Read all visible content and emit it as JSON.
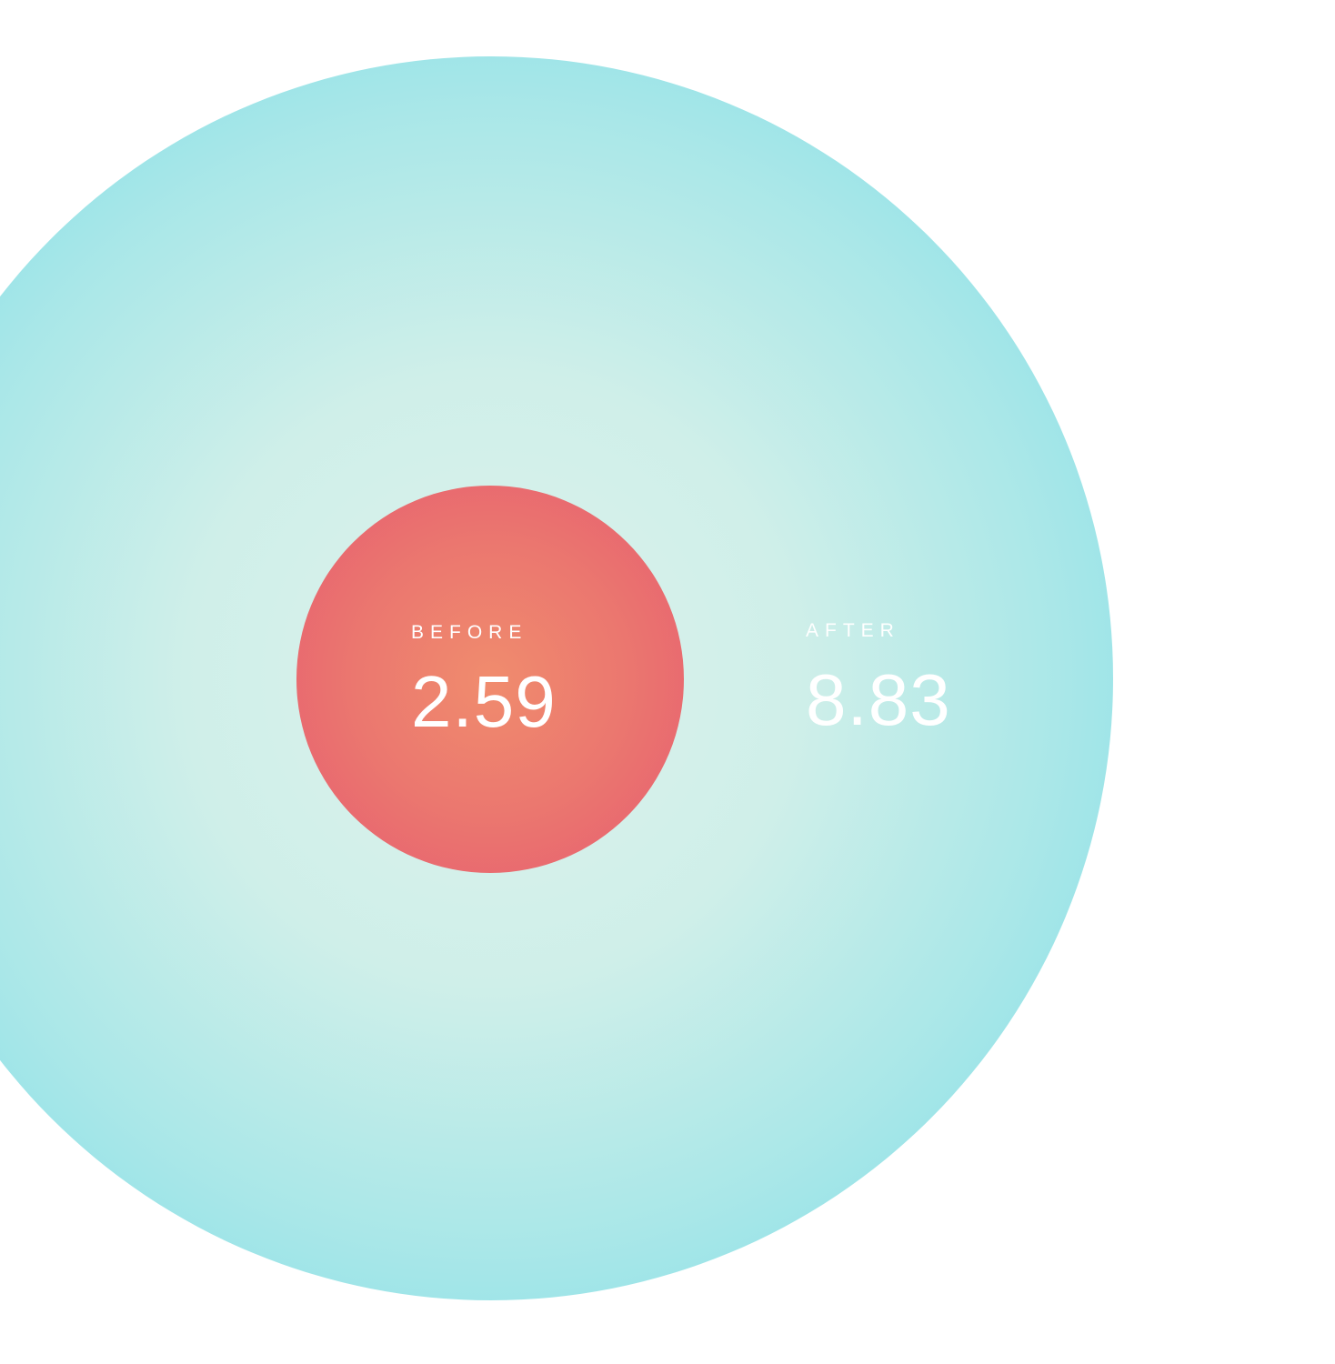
{
  "chart_data": {
    "type": "bubble",
    "layout": "concentric-circles, area encodes value, white background, labels left-aligned inside circles",
    "categories": [
      "BEFORE",
      "AFTER"
    ],
    "values": [
      2.59,
      8.83
    ],
    "series": [
      {
        "name": "BEFORE",
        "value": 2.59,
        "display": "2.59",
        "circle_radius_px": 213
      },
      {
        "name": "AFTER",
        "value": 8.83,
        "display": "8.83",
        "circle_radius_px": 684
      }
    ],
    "colors": {
      "background": "#ffffff",
      "text": "#ffffff",
      "before_center": "#f08c6e",
      "before_mid": "#eb776f",
      "before_edge": "#e65b70",
      "after_center": "#ddf2ec",
      "after_mid1": "#cfefe9",
      "after_mid2": "#a9e7e8",
      "after_edge": "#7bdde9"
    }
  },
  "before": {
    "label": "BEFORE",
    "value": "2.59"
  },
  "after": {
    "label": "AFTER",
    "value": "8.83"
  }
}
